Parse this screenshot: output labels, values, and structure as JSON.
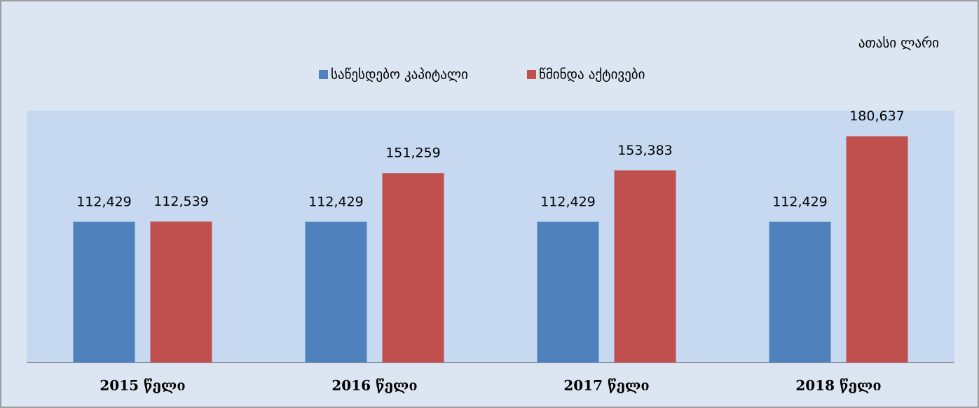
{
  "chart_data": {
    "type": "bar",
    "unit_label": "ათასი ლარი",
    "categories": [
      "2015 წელი",
      "2016 წელი",
      "2017 წელი",
      "2018 წელი"
    ],
    "series": [
      {
        "name": "საწესდებო კაპიტალი",
        "color": "#4f81bd",
        "values": [
          112429,
          112429,
          112429,
          112429
        ],
        "value_labels": [
          "112,429",
          "112,429",
          "112,429",
          "112,429"
        ]
      },
      {
        "name": "წმინდა აქტივები",
        "color": "#c0504d",
        "values": [
          112539,
          151259,
          153383,
          180637
        ],
        "value_labels": [
          "112,539",
          "151,259",
          "153,383",
          "180,637"
        ]
      }
    ],
    "ylim": [
      0,
      200000
    ],
    "legend": "top"
  }
}
